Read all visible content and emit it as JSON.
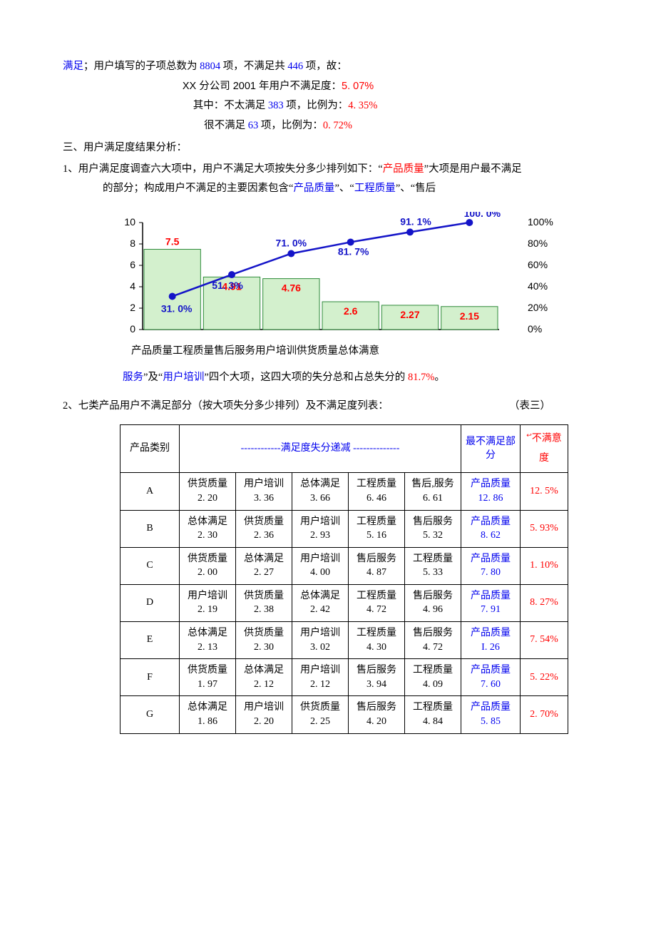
{
  "intro": {
    "prefix_blue": "满足",
    "line1_a": "；用户填写的子项总数为 ",
    "n_total": "8804",
    "line1_b": " 项，不满足共 ",
    "n_bad": "446",
    "line1_c": " 项，故：",
    "line2_a": "XX 分公司 2001 年用户不满足度：",
    "pct_all": "5. 07%",
    "line3_a": "其中：不太满足 ",
    "n_nt": "383",
    "line3_b": " 项，比例为：",
    "pct_nt": "4. 35%",
    "line4_a": "很不满足 ",
    "n_vb": "63",
    "line4_b": " 项，比例为：",
    "pct_vb": "0. 72%"
  },
  "section3_title": "三、用户满足度结果分析：",
  "para1": {
    "a": "1、用户满足度调查六大项中，用户不满足大项按失分多少排列如下：“",
    "q1": "产品质量",
    "b": "”大项是用户最不满足的部分；构成用户不满足的主要因素包含“",
    "q2": "产品质量",
    "c": "”、“",
    "q3": "工程质量",
    "d": "”、“售后"
  },
  "chart": {
    "type": "bar+line (pareto)",
    "categories": [
      "产品质量",
      "工程质量",
      "售后服务",
      "用户培训",
      "供货质量",
      "总体满意"
    ],
    "bar_values": [
      7.5,
      4.91,
      4.76,
      2.6,
      2.27,
      2.15
    ],
    "line_pct": [
      31.0,
      51.3,
      71.0,
      81.7,
      91.1,
      100.0
    ],
    "bar_value_labels": [
      "7.5",
      "4.91",
      "4.76",
      "2.6",
      "2.27",
      "2.15"
    ],
    "line_pct_labels": [
      "31. 0%",
      "51. 3%",
      "71. 0%",
      "81. 7%",
      "91. 1%",
      "100. 0%"
    ],
    "y_left_max": 10,
    "y_left_tick": 2,
    "y_right_max": 100,
    "y_right_tick": 20,
    "bar_fill": "#d3f0cd",
    "bar_stroke": "#2e8a3a",
    "line_color": "#1414c8",
    "marker_color": "#1414c8",
    "bar_label_color": "#ff0000",
    "line_label_color": "#1414c8",
    "axis_color": "#000000",
    "tick_font_size": 12,
    "label_font_size": 14,
    "xlabel_concat": "产品质量工程质量售后服务用户培训供货质量总体满意",
    "right_ticks": [
      "0%",
      "20%",
      "40%",
      "60%",
      "80%",
      "100%"
    ],
    "left_ticks": [
      "0",
      "2",
      "4",
      "6",
      "8",
      "10"
    ]
  },
  "after_chart": {
    "a": "服务",
    "b": "”及“",
    "c": "用户培训",
    "d": "”四个大项，这四大项的失分总和占总失分的 ",
    "pct": "81.7%",
    "e": "。"
  },
  "row2": {
    "left": "2、七类产品用户不满足部分（按大项失分多少排列）及不满足度列表：",
    "right": "（表三）"
  },
  "table3": {
    "hdr_cat": "产品类别",
    "hdr_mid": "------------满足度失分递减 --------------",
    "hdr_worst": "最不满足部分",
    "hdr_pct_sup": "↩",
    "hdr_pct": "不满意度",
    "rows": [
      {
        "cat": "A",
        "cells": [
          [
            "供货质量",
            "2. 20"
          ],
          [
            "用户培训",
            "3. 36"
          ],
          [
            "总体满足",
            "3. 66"
          ],
          [
            "工程质量",
            "6. 46"
          ],
          [
            "售后,服务",
            "6. 61"
          ]
        ],
        "worst": [
          "产品质量",
          "12. 86"
        ],
        "pct": "12. 5%"
      },
      {
        "cat": "B",
        "cells": [
          [
            "总体满足",
            "2. 30"
          ],
          [
            "供货质量",
            "2. 36"
          ],
          [
            "用户培训",
            "2. 93"
          ],
          [
            "工程质量",
            "5. 16"
          ],
          [
            "售后服务",
            "5. 32"
          ]
        ],
        "worst": [
          "产品质量",
          "8. 62"
        ],
        "pct": "5. 93%"
      },
      {
        "cat": "C",
        "cells": [
          [
            "供货质量",
            "2. 00"
          ],
          [
            "总体满足",
            "2. 27"
          ],
          [
            "用户培训",
            "4. 00"
          ],
          [
            "售后服务",
            "4. 87"
          ],
          [
            "工程质量",
            "5. 33"
          ]
        ],
        "worst": [
          "产品质量",
          "7. 80"
        ],
        "pct": "1. 10%"
      },
      {
        "cat": "D",
        "cells": [
          [
            "用户培训",
            "2. 19"
          ],
          [
            "供货质量",
            "2. 38"
          ],
          [
            "总体满足",
            "2. 42"
          ],
          [
            "工程质量",
            "4. 72"
          ],
          [
            "售后服务",
            "4. 96"
          ]
        ],
        "worst": [
          "产品质量",
          "7. 91"
        ],
        "pct": "8. 27%"
      },
      {
        "cat": "E",
        "cells": [
          [
            "总体满足",
            "2. 13"
          ],
          [
            "供货质量",
            "2. 30"
          ],
          [
            "用户培训",
            "3. 02"
          ],
          [
            "工程质量",
            "4. 30"
          ],
          [
            "售后服务",
            "4. 72"
          ]
        ],
        "worst": [
          "产品质量",
          "I. 26"
        ],
        "pct": "7. 54%"
      },
      {
        "cat": "F",
        "cells": [
          [
            "供货质量",
            "1. 97"
          ],
          [
            "总体满足",
            "2. 12"
          ],
          [
            "用户培训",
            "2. 12"
          ],
          [
            "售后服务",
            "3. 94"
          ],
          [
            "工程质量",
            "4. 09"
          ]
        ],
        "worst": [
          "产品质量",
          "7. 60"
        ],
        "pct": "5. 22%"
      },
      {
        "cat": "G",
        "cells": [
          [
            "总体满足",
            "1. 86"
          ],
          [
            "用户培训",
            "2. 20"
          ],
          [
            "供货质量",
            "2. 25"
          ],
          [
            "售后服务",
            "4. 20"
          ],
          [
            "工程质量",
            "4. 84"
          ]
        ],
        "worst": [
          "产品质量",
          "5. 85"
        ],
        "pct": "2. 70%"
      }
    ]
  }
}
